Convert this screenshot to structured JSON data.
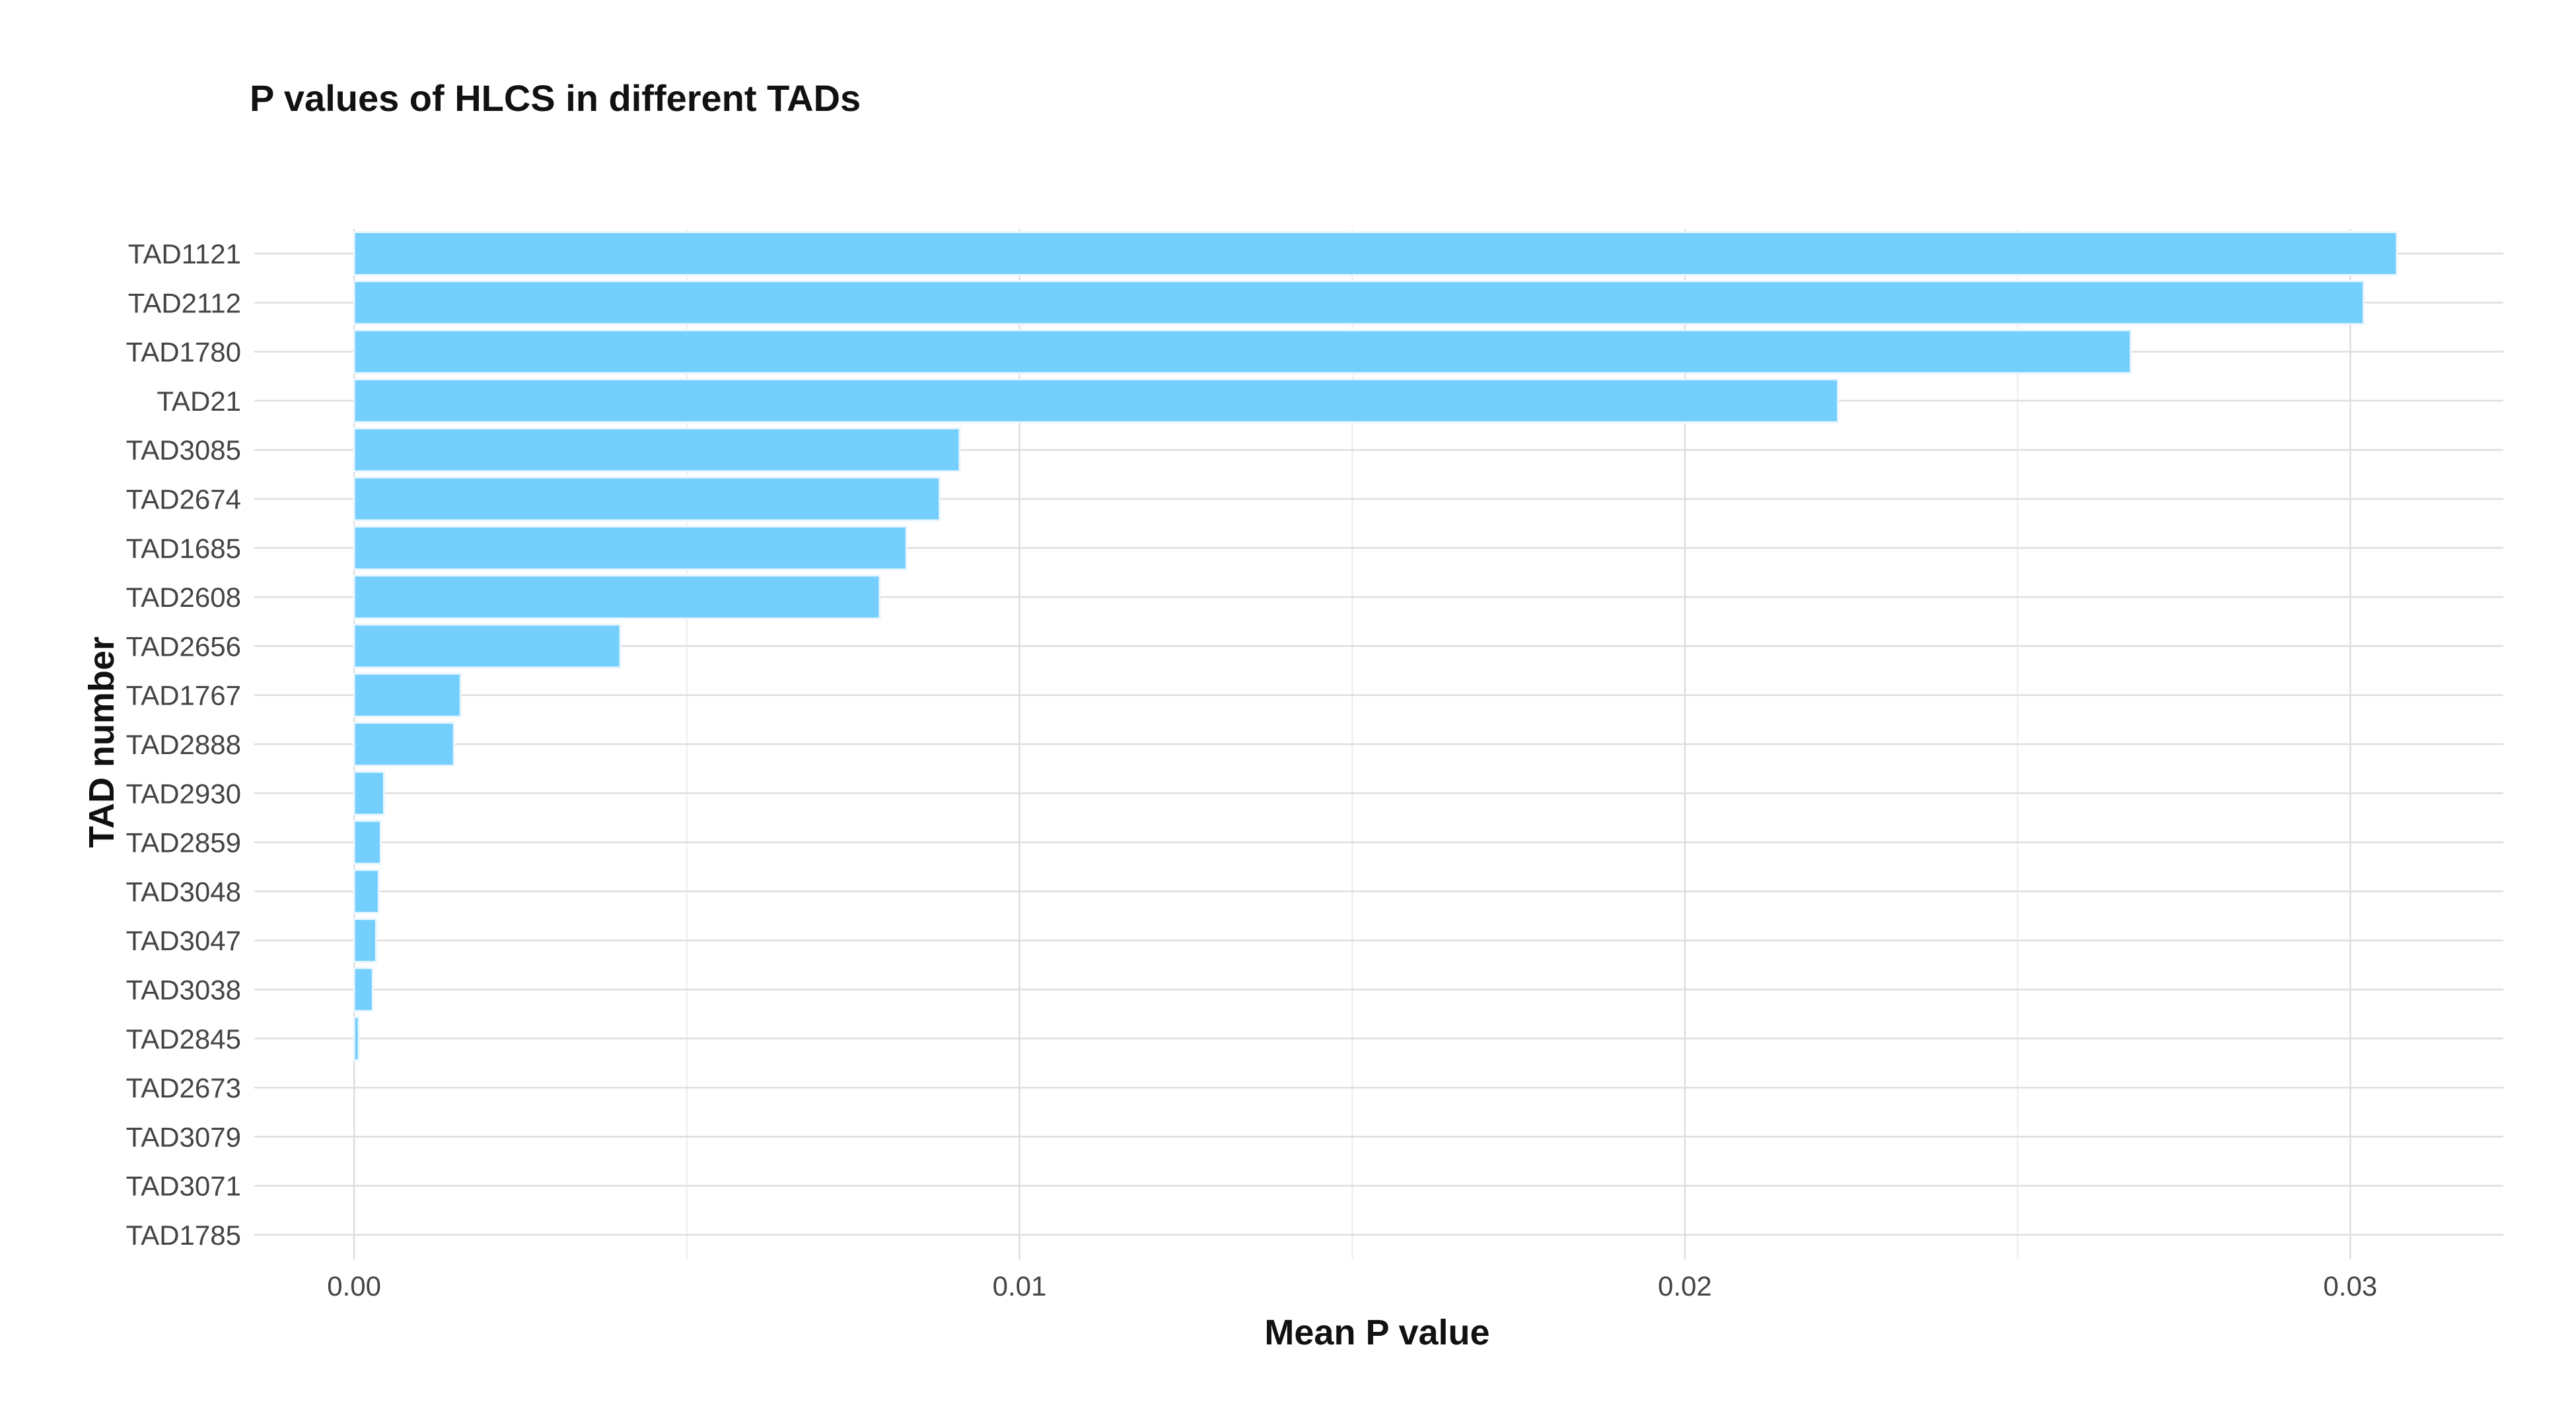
{
  "chart_data": {
    "type": "bar",
    "orientation": "horizontal",
    "title": "P values of HLCS in different TADs",
    "xlabel": "Mean P value",
    "ylabel": "TAD number",
    "categories": [
      "TAD1121",
      "TAD2112",
      "TAD1780",
      "TAD21",
      "TAD3085",
      "TAD2674",
      "TAD1685",
      "TAD2608",
      "TAD2656",
      "TAD1767",
      "TAD2888",
      "TAD2930",
      "TAD2859",
      "TAD3048",
      "TAD3047",
      "TAD3038",
      "TAD2845",
      "TAD2673",
      "TAD3079",
      "TAD3071",
      "TAD1785"
    ],
    "values": [
      0.0307,
      0.0302,
      0.0267,
      0.0223,
      0.0091,
      0.0088,
      0.0083,
      0.0079,
      0.004,
      0.0016,
      0.0015,
      0.00045,
      0.0004,
      0.00037,
      0.00033,
      0.00028,
      7e-05,
      0.0,
      0.0,
      0.0,
      0.0
    ],
    "xlim": [
      -0.0015,
      0.0323
    ],
    "x_ticks": [
      0.0,
      0.01,
      0.02,
      0.03
    ],
    "x_tick_labels": [
      "0.00",
      "0.01",
      "0.02",
      "0.03"
    ],
    "grid": true,
    "legend": "none",
    "colors": {
      "bar_fill": "#74cffd",
      "bar_outline": "#e9f6ff",
      "grid": "#dedede"
    }
  }
}
